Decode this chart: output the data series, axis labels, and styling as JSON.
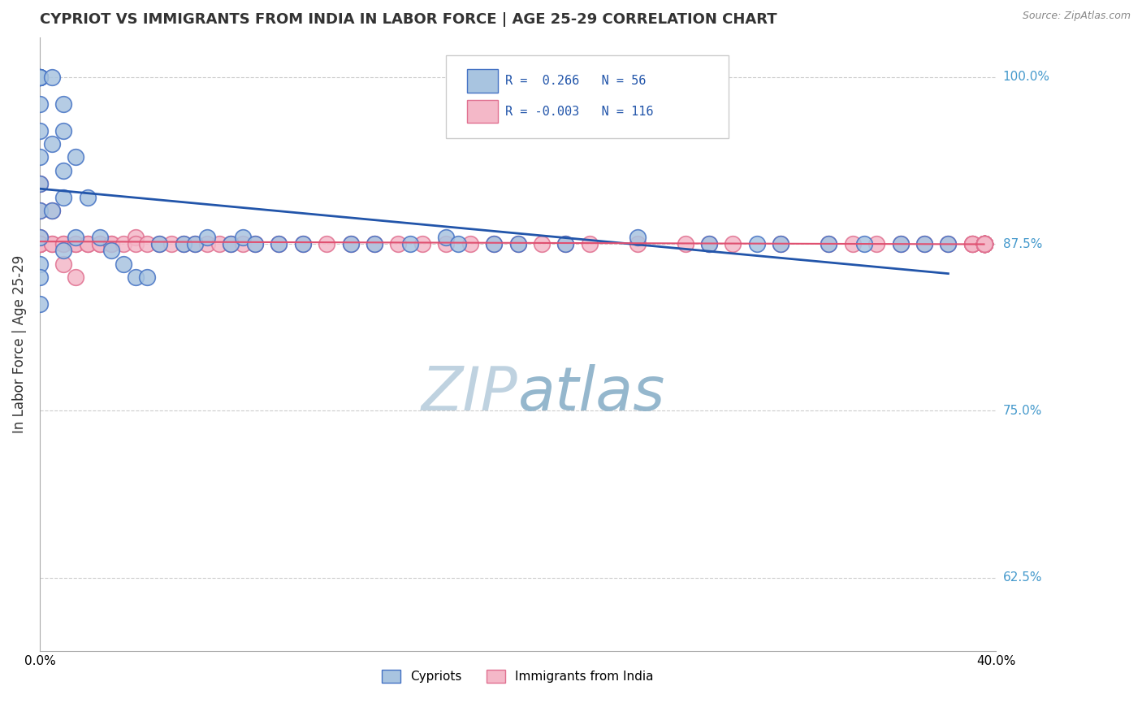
{
  "title": "CYPRIOT VS IMMIGRANTS FROM INDIA IN LABOR FORCE | AGE 25-29 CORRELATION CHART",
  "source_text": "Source: ZipAtlas.com",
  "ylabel": "In Labor Force | Age 25-29",
  "xlim": [
    0.0,
    0.4
  ],
  "ylim": [
    0.57,
    1.03
  ],
  "ytick_labels": [
    "62.5%",
    "75.0%",
    "87.5%",
    "100.0%"
  ],
  "ytick_values": [
    0.625,
    0.75,
    0.875,
    1.0
  ],
  "xtick_labels": [
    "0.0%",
    "",
    "",
    "",
    "",
    "",
    "",
    "",
    "",
    "",
    "40.0%"
  ],
  "xtick_values": [
    0.0,
    0.04,
    0.08,
    0.12,
    0.16,
    0.2,
    0.24,
    0.28,
    0.32,
    0.36,
    0.4
  ],
  "legend_R_cypriot": "0.266",
  "legend_N_cypriot": "56",
  "legend_R_india": "-0.003",
  "legend_N_india": "116",
  "cypriot_color": "#a8c4e0",
  "cypriot_edge_color": "#4472c4",
  "india_color": "#f4b8c8",
  "india_edge_color": "#e07090",
  "trend_cypriot_color": "#2255aa",
  "trend_india_color": "#e05070",
  "right_label_color": "#4499cc",
  "cypriot_x": [
    0.0,
    0.0,
    0.0,
    0.0,
    0.0,
    0.0,
    0.0,
    0.0,
    0.0,
    0.0,
    0.0,
    0.0,
    0.0,
    0.0,
    0.005,
    0.005,
    0.005,
    0.01,
    0.01,
    0.01,
    0.01,
    0.01,
    0.015,
    0.015,
    0.02,
    0.025,
    0.03,
    0.035,
    0.04,
    0.045,
    0.05,
    0.06,
    0.065,
    0.07,
    0.08,
    0.085,
    0.09,
    0.1,
    0.11,
    0.13,
    0.14,
    0.155,
    0.17,
    0.175,
    0.19,
    0.2,
    0.22,
    0.25,
    0.28,
    0.3,
    0.31,
    0.33,
    0.345,
    0.36,
    0.37,
    0.38
  ],
  "cypriot_y": [
    1.0,
    1.0,
    1.0,
    1.0,
    1.0,
    0.98,
    0.96,
    0.94,
    0.92,
    0.9,
    0.88,
    0.86,
    0.85,
    0.83,
    1.0,
    0.95,
    0.9,
    0.98,
    0.96,
    0.93,
    0.91,
    0.87,
    0.94,
    0.88,
    0.91,
    0.88,
    0.87,
    0.86,
    0.85,
    0.85,
    0.875,
    0.875,
    0.875,
    0.88,
    0.875,
    0.88,
    0.875,
    0.875,
    0.875,
    0.875,
    0.875,
    0.875,
    0.88,
    0.875,
    0.875,
    0.875,
    0.875,
    0.88,
    0.875,
    0.875,
    0.875,
    0.875,
    0.875,
    0.875,
    0.875,
    0.875
  ],
  "india_x": [
    0.0,
    0.0,
    0.0,
    0.0,
    0.0,
    0.0,
    0.0,
    0.0,
    0.005,
    0.005,
    0.005,
    0.01,
    0.01,
    0.01,
    0.015,
    0.015,
    0.015,
    0.02,
    0.02,
    0.025,
    0.025,
    0.03,
    0.03,
    0.035,
    0.04,
    0.04,
    0.045,
    0.05,
    0.055,
    0.06,
    0.065,
    0.07,
    0.075,
    0.08,
    0.085,
    0.09,
    0.1,
    0.11,
    0.12,
    0.13,
    0.14,
    0.15,
    0.16,
    0.17,
    0.18,
    0.19,
    0.2,
    0.21,
    0.22,
    0.23,
    0.25,
    0.27,
    0.28,
    0.29,
    0.31,
    0.33,
    0.34,
    0.35,
    0.36,
    0.37,
    0.38,
    0.39,
    0.39,
    0.39,
    0.39,
    0.395,
    0.395,
    0.395,
    0.395,
    0.395,
    0.395,
    0.395,
    0.395,
    0.395,
    0.395,
    0.395,
    0.395,
    0.395,
    0.395,
    0.395,
    0.395,
    0.395,
    0.395,
    0.395,
    0.395,
    0.395,
    0.395,
    0.395,
    0.395,
    0.395,
    0.395,
    0.395,
    0.395,
    0.395,
    0.395,
    0.395,
    0.395,
    0.395,
    0.395,
    0.395,
    0.395,
    0.395,
    0.395,
    0.395,
    0.395,
    0.395,
    0.395,
    0.395,
    0.395,
    0.395,
    0.395,
    0.395,
    0.395,
    0.395,
    0.395,
    0.395
  ],
  "india_y": [
    0.92,
    0.9,
    0.88,
    0.875,
    0.875,
    0.875,
    0.875,
    0.875,
    0.9,
    0.875,
    0.875,
    0.875,
    0.875,
    0.86,
    0.875,
    0.875,
    0.85,
    0.875,
    0.875,
    0.875,
    0.875,
    0.875,
    0.875,
    0.875,
    0.88,
    0.875,
    0.875,
    0.875,
    0.875,
    0.875,
    0.875,
    0.875,
    0.875,
    0.875,
    0.875,
    0.875,
    0.875,
    0.875,
    0.875,
    0.875,
    0.875,
    0.875,
    0.875,
    0.875,
    0.875,
    0.875,
    0.875,
    0.875,
    0.875,
    0.875,
    0.875,
    0.875,
    0.875,
    0.875,
    0.875,
    0.875,
    0.875,
    0.875,
    0.875,
    0.875,
    0.875,
    0.875,
    0.875,
    0.875,
    0.875,
    0.875,
    0.875,
    0.875,
    0.875,
    0.875,
    0.875,
    0.875,
    0.875,
    0.875,
    0.875,
    0.875,
    0.875,
    0.875,
    0.875,
    0.875,
    0.875,
    0.875,
    0.875,
    0.875,
    0.875,
    0.875,
    0.875,
    0.875,
    0.875,
    0.875,
    0.875,
    0.875,
    0.875,
    0.875,
    0.875,
    0.875,
    0.875,
    0.875,
    0.875,
    0.875,
    0.875,
    0.875,
    0.875,
    0.875,
    0.875,
    0.875,
    0.875,
    0.875,
    0.875,
    0.875,
    0.875,
    0.875,
    0.875,
    0.875,
    0.875,
    0.875
  ]
}
